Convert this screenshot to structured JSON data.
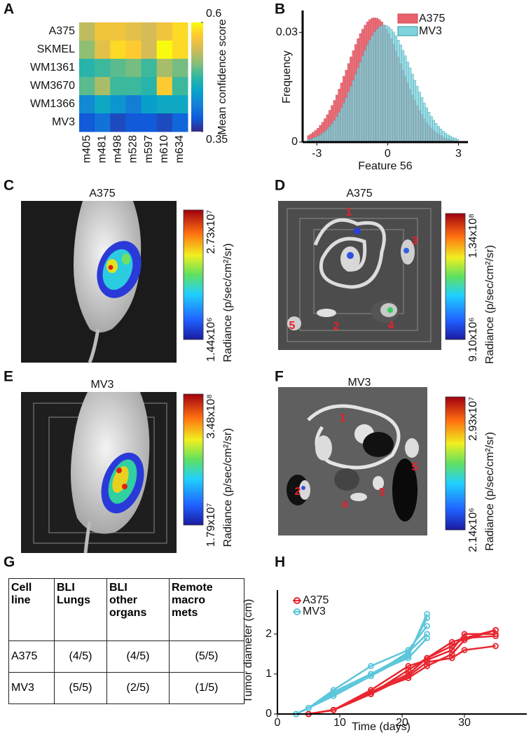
{
  "panel_letters": [
    "A",
    "B",
    "C",
    "D",
    "E",
    "F",
    "G",
    "H"
  ],
  "chart_data": [
    {
      "type": "heatmap",
      "rows": [
        "A375",
        "SKMEL",
        "WM1361",
        "WM3670",
        "WM1366",
        "MV3"
      ],
      "columns": [
        "m405",
        "m481",
        "m498",
        "m528",
        "m597",
        "m610",
        "m634"
      ],
      "values": [
        [
          0.53,
          0.56,
          0.56,
          0.55,
          0.54,
          0.56,
          0.58
        ],
        [
          0.51,
          0.55,
          0.58,
          0.57,
          0.54,
          0.6,
          0.58
        ],
        [
          0.47,
          0.48,
          0.49,
          0.5,
          0.48,
          0.52,
          0.5
        ],
        [
          0.49,
          0.52,
          0.48,
          0.48,
          0.47,
          0.57,
          0.48
        ],
        [
          0.42,
          0.45,
          0.43,
          0.41,
          0.44,
          0.45,
          0.45
        ],
        [
          0.38,
          0.4,
          0.37,
          0.38,
          0.38,
          0.37,
          0.39
        ]
      ],
      "colorbar_label": "Mean confidence score",
      "clim": [
        0.35,
        0.6
      ],
      "colorbar_ticks": [
        0.6,
        0.35
      ],
      "colormap": [
        "#352a87",
        "#0f5cdd",
        "#1481d6",
        "#06a4ca",
        "#2eb7a4",
        "#87bf77",
        "#d1bb59",
        "#fec832",
        "#f9fb0e"
      ]
    },
    {
      "type": "histogram",
      "xlabel": "Feature 56",
      "ylabel": "Frequency",
      "bins": [
        -3.4,
        -3.3,
        -3.2,
        -3.1,
        -3,
        -2.9,
        -2.8,
        -2.7,
        -2.6,
        -2.5,
        -2.4,
        -2.3,
        -2.2,
        -2.1,
        -2,
        -1.9,
        -1.8,
        -1.7,
        -1.6,
        -1.5,
        -1.4,
        -1.3,
        -1.2,
        -1.1,
        -1,
        -0.9,
        -0.8,
        -0.7,
        -0.6,
        -0.5,
        -0.4,
        -0.3,
        -0.2,
        -0.1,
        0,
        0.1,
        0.2,
        0.3,
        0.4,
        0.5,
        0.6,
        0.7,
        0.8,
        0.9,
        1,
        1.1,
        1.2,
        1.3,
        1.4,
        1.5,
        1.6,
        1.7,
        1.8,
        1.9,
        2,
        2.1,
        2.2,
        2.3,
        2.4,
        2.5,
        2.6,
        2.7,
        2.8,
        2.9,
        3
      ],
      "series": [
        {
          "name": "A375",
          "color": "#e8616b",
          "values": [
            0.0018,
            0.0022,
            0.0027,
            0.0032,
            0.0038,
            0.0046,
            0.0054,
            0.0064,
            0.0075,
            0.0087,
            0.01,
            0.0114,
            0.0129,
            0.0145,
            0.0162,
            0.018,
            0.0197,
            0.0215,
            0.0233,
            0.025,
            0.0267,
            0.0283,
            0.0297,
            0.0309,
            0.032,
            0.0329,
            0.0335,
            0.0339,
            0.034,
            0.0339,
            0.0335,
            0.0329,
            0.032,
            0.0309,
            0.0297,
            0.0283,
            0.0267,
            0.025,
            0.0233,
            0.0215,
            0.0197,
            0.018,
            0.0162,
            0.0145,
            0.0129,
            0.0114,
            0.01,
            0.0087,
            0.0075,
            0.0064,
            0.0054,
            0.0046,
            0.0038,
            0.0032,
            0.0027,
            0.0022,
            0.0018,
            0.0014,
            0.0011,
            0.0009,
            0.0007,
            0.0005,
            0.0004,
            0.0003
          ]
        },
        {
          "name": "MV3",
          "color": "#7fd3dd",
          "values": [
            0.0007,
            0.0008,
            0.0011,
            0.0013,
            0.0017,
            0.002,
            0.0025,
            0.003,
            0.0036,
            0.0043,
            0.0051,
            0.006,
            0.007,
            0.0082,
            0.0094,
            0.0107,
            0.0122,
            0.0137,
            0.0153,
            0.0169,
            0.0186,
            0.0203,
            0.0219,
            0.0236,
            0.0251,
            0.0266,
            0.0279,
            0.0291,
            0.0301,
            0.0309,
            0.0315,
            0.0319,
            0.032,
            0.0319,
            0.0315,
            0.0309,
            0.0301,
            0.0291,
            0.0279,
            0.0266,
            0.0251,
            0.0236,
            0.0219,
            0.0203,
            0.0186,
            0.0169,
            0.0153,
            0.0137,
            0.0122,
            0.0107,
            0.0094,
            0.0082,
            0.007,
            0.006,
            0.0051,
            0.0043,
            0.0036,
            0.003,
            0.0025,
            0.002,
            0.0017,
            0.0013,
            0.0011,
            0.0008
          ]
        }
      ],
      "xlim": [
        -3.6,
        3.4
      ],
      "xticks": [
        -3,
        0,
        3
      ],
      "ylim": [
        0,
        0.036
      ],
      "yticks": [
        0,
        0.03
      ],
      "legend": "upper right"
    },
    {
      "type": "line",
      "xlabel": "Time (days)",
      "ylabel": "Tumor diameter (cm)",
      "xlim": [
        0,
        40
      ],
      "xticks": [
        0,
        10,
        20,
        30
      ],
      "ylim": [
        0,
        3.1
      ],
      "yticks": [
        0,
        1,
        2
      ],
      "legend": "upper left",
      "groups": [
        {
          "name": "A375",
          "color": "#e8262f",
          "x": [
            5,
            9,
            15,
            21,
            24,
            28,
            30,
            35
          ],
          "series": [
            [
              0,
              0.1,
              0.5,
              1.1,
              1.4,
              1.8,
              1.9,
              2.1
            ],
            [
              0,
              0.1,
              0.6,
              1.2,
              1.35,
              1.6,
              2,
              2
            ],
            [
              0,
              0.1,
              0.55,
              0.9,
              1.2,
              1.5,
              1.85,
              2.1
            ],
            [
              0,
              0.1,
              0.5,
              0.95,
              1.3,
              1.4,
              1.6,
              1.7
            ],
            [
              0,
              0.1,
              0.55,
              1,
              1.4,
              1.7,
              1.9,
              1.95
            ]
          ]
        },
        {
          "name": "MV3",
          "color": "#5cc6da",
          "x": [
            3,
            5,
            9,
            15,
            21,
            24
          ],
          "series": [
            [
              0,
              0.15,
              0.5,
              0.95,
              1.45,
              2.5
            ],
            [
              0,
              0.15,
              0.55,
              1,
              1.5,
              2.4
            ],
            [
              0,
              0.15,
              0.6,
              1.2,
              1.6,
              2.2
            ],
            [
              0,
              0.15,
              0.45,
              0.95,
              1.55,
              2
            ],
            [
              0,
              0.15,
              0.55,
              1,
              1.4,
              1.9
            ]
          ]
        }
      ]
    }
  ],
  "images": [
    {
      "title": "A375",
      "colorbar_max": "2.73x10⁷",
      "colorbar_min": "1.44x10⁶",
      "colorbar_label": "Radiance (p/sec/cm²/sr)"
    },
    {
      "title": "A375",
      "colorbar_max": "1.34x10⁸",
      "colorbar_min": "9.10x10⁶",
      "colorbar_label": "Radiance (p/sec/cm²/sr)",
      "organ_labels": [
        "1",
        "2",
        "3",
        "4",
        "5"
      ]
    },
    {
      "title": "MV3",
      "colorbar_max": "3.48x10⁸",
      "colorbar_min": "1.79x10⁷",
      "colorbar_label": "Radiance (p/sec/cm²/sr)"
    },
    {
      "title": "MV3",
      "colorbar_max": "2.93x10⁷",
      "colorbar_min": "2.14x10⁶",
      "colorbar_label": "Radiance (p/sec/cm²/sr)",
      "organ_labels": [
        "1",
        "2",
        "3",
        "4",
        "5"
      ]
    }
  ],
  "table": {
    "header": [
      "Cell\nline",
      "BLI\nLungs",
      "BLI\nother\norgans",
      "Remote\nmacro\nmets"
    ],
    "rows": [
      [
        "A375",
        "(4/5)",
        "(4/5)",
        "(5/5)"
      ],
      [
        "MV3",
        "(5/5)",
        "(2/5)",
        "(1/5)"
      ]
    ]
  }
}
